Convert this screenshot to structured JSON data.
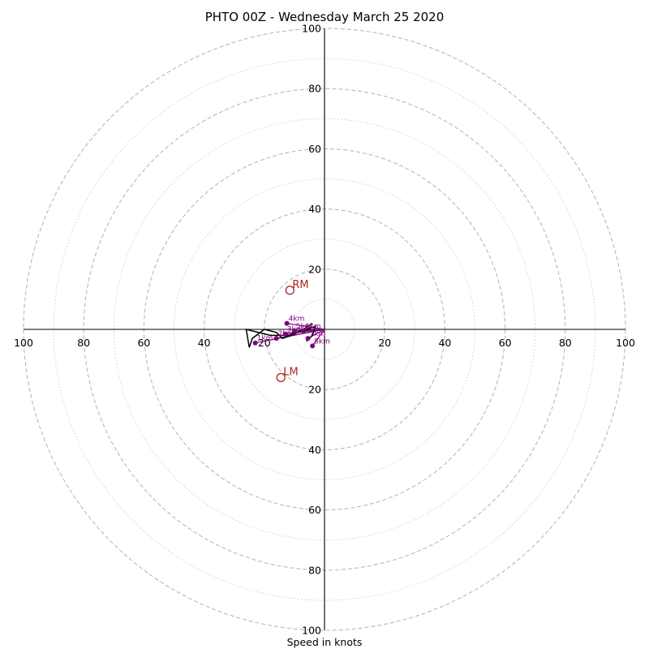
{
  "chart_data": {
    "type": "scatter",
    "title": "PHTO 00Z - Wednesday March 25 2020",
    "xlabel": "Speed in knots",
    "ylabel": "",
    "xlim": [
      -100,
      100
    ],
    "ylim": [
      -100,
      100
    ],
    "major_rings": [
      20,
      40,
      60,
      80,
      100
    ],
    "minor_rings": [
      10,
      30,
      50,
      70,
      90
    ],
    "x_ticks": [
      {
        "value": -100,
        "label": "100"
      },
      {
        "value": -80,
        "label": "80"
      },
      {
        "value": -60,
        "label": "60"
      },
      {
        "value": -40,
        "label": "40"
      },
      {
        "value": -20,
        "label": "20"
      },
      {
        "value": 20,
        "label": "20"
      },
      {
        "value": 40,
        "label": "40"
      },
      {
        "value": 60,
        "label": "60"
      },
      {
        "value": 80,
        "label": "80"
      },
      {
        "value": 100,
        "label": "100"
      }
    ],
    "y_ticks": [
      {
        "value": 100,
        "label": "100"
      },
      {
        "value": 80,
        "label": "80"
      },
      {
        "value": 60,
        "label": "60"
      },
      {
        "value": 40,
        "label": "40"
      },
      {
        "value": 20,
        "label": "20"
      },
      {
        "value": -20,
        "label": "20"
      },
      {
        "value": -40,
        "label": "40"
      },
      {
        "value": -60,
        "label": "60"
      },
      {
        "value": -80,
        "label": "80"
      },
      {
        "value": -100,
        "label": "100"
      }
    ],
    "hodograph": [
      {
        "u": -4,
        "v": 2
      },
      {
        "u": -7,
        "v": 0
      },
      {
        "u": -11,
        "v": -2
      },
      {
        "u": -14,
        "v": -3
      },
      {
        "u": -16,
        "v": -1
      },
      {
        "u": -20,
        "v": 0
      },
      {
        "u": -24,
        "v": -3
      },
      {
        "u": -25,
        "v": -6
      },
      {
        "u": -26,
        "v": 0
      },
      {
        "u": -18,
        "v": -2
      },
      {
        "u": -12,
        "v": -2
      },
      {
        "u": -9,
        "v": -1
      },
      {
        "u": -6,
        "v": 0
      },
      {
        "u": -3,
        "v": 1
      },
      {
        "u": -4,
        "v": -2
      },
      {
        "u": -6,
        "v": -4
      }
    ],
    "height_points": [
      {
        "u": -23,
        "v": -4.5,
        "label": "1km"
      },
      {
        "u": -16,
        "v": -3,
        "label": "2km"
      },
      {
        "u": -13,
        "v": -1.5,
        "label": "3km"
      },
      {
        "u": -12.5,
        "v": 2,
        "label": "4km"
      },
      {
        "u": -10,
        "v": -0.5,
        "label": "5km"
      },
      {
        "u": -7,
        "v": -0.5,
        "label": "6km"
      },
      {
        "u": -5.5,
        "v": -3,
        "label": "7km"
      },
      {
        "u": -4,
        "v": -5.5,
        "label": "8km"
      }
    ],
    "storm_motion": [
      {
        "label": "RM",
        "u": -11.5,
        "v": 13
      },
      {
        "label": "LM",
        "u": -14.5,
        "v": -16
      }
    ],
    "grid": true,
    "legend": false
  }
}
